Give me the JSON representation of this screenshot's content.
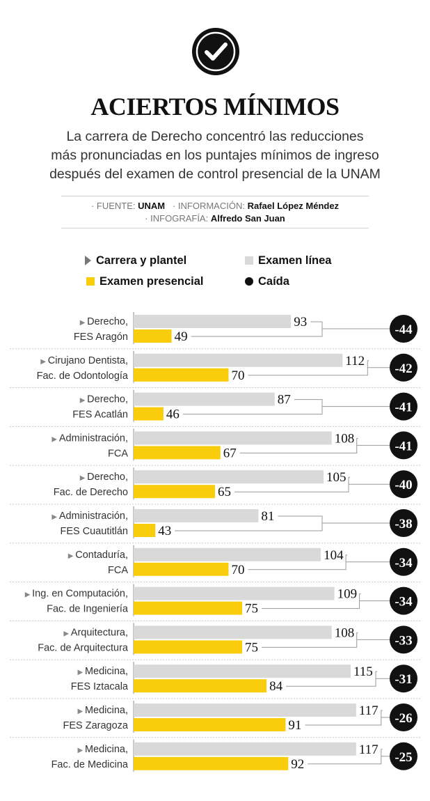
{
  "header": {
    "title": "ACIERTOS MÍNIMOS",
    "subtitle_lines": [
      "La carrera de Derecho concentró las reducciones",
      "más pronunciadas en los puntajes mínimos de ingreso",
      "después del examen de control presencial de la UNAM"
    ],
    "icon": "check-circle-icon"
  },
  "credits": {
    "source_label": "· FUENTE:",
    "source": "UNAM",
    "info_label": "· INFORMACIÓN:",
    "info": "Rafael López Méndez",
    "graphic_label": "· INFOGRAFÍA:",
    "graphic": "Alfredo San Juan"
  },
  "legend": {
    "career": "Carrera y plantel",
    "online": "Examen línea",
    "inperson": "Examen presencial",
    "drop": "Caída"
  },
  "colors": {
    "online": "#d9d9d9",
    "inperson": "#f9cd0b",
    "drop": "#111111"
  },
  "chart_data": {
    "type": "bar",
    "orientation": "horizontal",
    "grid": false,
    "legend_position": "top",
    "categories": [
      [
        "Derecho,",
        "FES Aragón"
      ],
      [
        "Cirujano Dentista,",
        "Fac. de Odontología"
      ],
      [
        "Derecho,",
        "FES Acatlán"
      ],
      [
        "Administración,",
        "FCA"
      ],
      [
        "Derecho,",
        "Fac. de Derecho"
      ],
      [
        "Administración,",
        "FES Cuautitlán"
      ],
      [
        "Contaduría,",
        "FCA"
      ],
      [
        "Ing. en Computación,",
        "Fac. de Ingeniería"
      ],
      [
        "Arquitectura,",
        "Fac. de Arquitectura"
      ],
      [
        "Medicina,",
        "FES Iztacala"
      ],
      [
        "Medicina,",
        "FES Zaragoza"
      ],
      [
        "Medicina,",
        "Fac. de Medicina"
      ]
    ],
    "series": [
      {
        "name": "Examen línea",
        "values": [
          93,
          112,
          87,
          108,
          105,
          81,
          104,
          109,
          108,
          115,
          117,
          117
        ]
      },
      {
        "name": "Examen presencial",
        "values": [
          49,
          70,
          46,
          67,
          65,
          43,
          70,
          75,
          75,
          84,
          91,
          92
        ]
      }
    ],
    "drop": [
      -44,
      -42,
      -41,
      -41,
      -40,
      -38,
      -34,
      -34,
      -33,
      -31,
      -26,
      -25
    ],
    "xlim": [
      35,
      120
    ]
  }
}
